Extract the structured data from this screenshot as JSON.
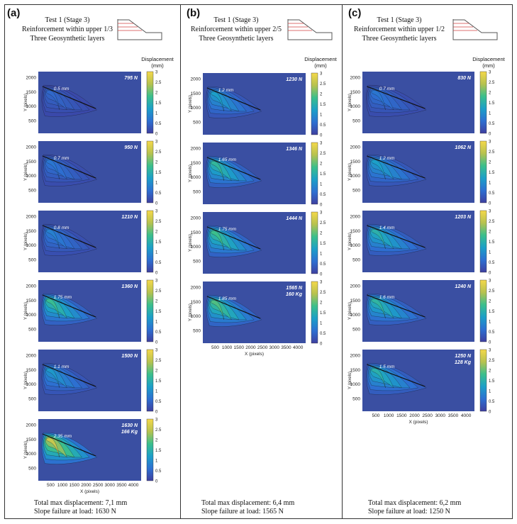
{
  "colors": {
    "background": "#3a4fa2",
    "colormap": [
      "#3e3f9f",
      "#2d6fd1",
      "#1c9fc8",
      "#3bbf8c",
      "#b7c24f",
      "#f4d84a"
    ]
  },
  "axis_labels": {
    "x_label": "X (pixels)",
    "y_label": "Y (pixels)",
    "x_ticks": [
      "500",
      "1000",
      "1500",
      "2000",
      "2500",
      "3000",
      "3500",
      "4000"
    ],
    "y_ticks": [
      "2000",
      "1500",
      "1000",
      "500"
    ],
    "cb_ticks": [
      "3",
      "2.5",
      "2",
      "1.5",
      "1",
      "0.5",
      "0"
    ]
  },
  "panels": [
    {
      "label": "(a)",
      "title_lines": [
        "Test 1 (Stage 3)",
        "Reinforcement within upper 1/3",
        "Three Geosynthetic layers"
      ],
      "disp_title": [
        "Displacement",
        "(mm)"
      ],
      "footer": [
        "Total max displacement: 7,1 mm",
        "Slope failure at load: 1630 N"
      ],
      "plots": [
        {
          "load": "795 N",
          "max_label": "0.5 mm",
          "max_level": 0.17
        },
        {
          "load": "950 N",
          "max_label": "0.7 mm",
          "max_level": 0.23
        },
        {
          "load": "1210 N",
          "max_label": "0.8 mm",
          "max_level": 0.27
        },
        {
          "load": "1360 N",
          "max_label": "1.75 mm",
          "max_level": 0.58
        },
        {
          "load": "1500 N",
          "max_label": "1.1 mm",
          "max_level": 0.37
        },
        {
          "load": "1630 N",
          "extra": "166 Kg",
          "max_label": "2.35 mm",
          "max_level": 0.85
        }
      ]
    },
    {
      "label": "(b)",
      "title_lines": [
        "Test 1 (Stage 3)",
        "Reinforcement within upper 2/5",
        "Three Geosynthetic layers"
      ],
      "disp_title": [
        "Displacement",
        "(mm)"
      ],
      "footer": [
        "Total max displacement: 6,4 mm",
        "Slope failure at load: 1565 N"
      ],
      "plots": [
        {
          "load": "1230 N",
          "max_label": "1.2 mm",
          "max_level": 0.4
        },
        {
          "load": "1346 N",
          "max_label": "1.65 mm",
          "max_level": 0.55
        },
        {
          "load": "1444 N",
          "max_label": "1.75 mm",
          "max_level": 0.6
        },
        {
          "load": "1565 N",
          "extra": "160 Kg",
          "max_label": "1.85 mm",
          "max_level": 0.63
        }
      ]
    },
    {
      "label": "(c)",
      "title_lines": [
        "Test 1 (Stage 3)",
        "Reinforcement within upper 1/2",
        "Three Geosynthetic layers"
      ],
      "disp_title": [
        "Displacement",
        "(mm)"
      ],
      "footer": [
        "Total max displacement: 6,2 mm",
        "Slope failure at load: 1250 N"
      ],
      "plots": [
        {
          "load": "830 N",
          "max_label": "0.7 mm",
          "max_level": 0.23
        },
        {
          "load": "1062 N",
          "max_label": "1.2 mm",
          "max_level": 0.4
        },
        {
          "load": "1203 N",
          "max_label": "1.4 mm",
          "max_level": 0.5
        },
        {
          "load": "1240 N",
          "max_label": "1.6 mm",
          "max_level": 0.53
        },
        {
          "load": "1250 N",
          "extra": "128 Kg",
          "max_label": "1.5 mm",
          "max_level": 0.5
        }
      ]
    }
  ]
}
